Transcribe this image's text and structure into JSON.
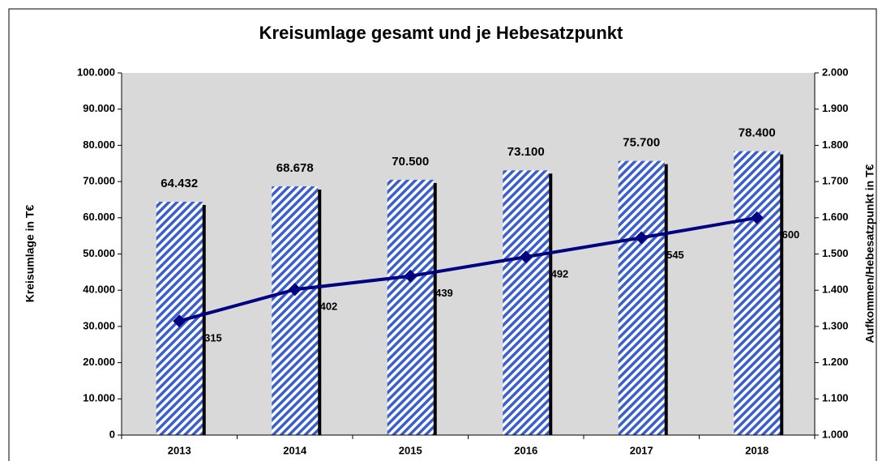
{
  "chart_data": {
    "type": "bar_line",
    "title": "Kreisumlage gesamt und je Hebesatzpunkt",
    "ylabel": "Kreisumlage in T€",
    "y2label": "Aufkommen/Hebesatzpunkt in T€",
    "categories": [
      "2013",
      "2014",
      "2015",
      "2016",
      "2017",
      "2018"
    ],
    "series": [
      {
        "type": "bar",
        "color": "#3a5fcd",
        "values": [
          64432,
          68678,
          70500,
          73100,
          75700,
          78400
        ],
        "value_labels": [
          "64.432",
          "68.678",
          "70.500",
          "73.100",
          "75.700",
          "78.400"
        ]
      },
      {
        "type": "line",
        "axis": "y2",
        "color": "#000080",
        "values": [
          1315,
          1402,
          1439,
          1492,
          1545,
          1600
        ],
        "value_labels": [
          "1.315",
          "1.402",
          "1.439",
          "1.492",
          "1.545",
          "1.600"
        ]
      }
    ],
    "ylim": [
      0,
      100000
    ],
    "yticks": [
      0,
      {
        "value": 10000,
        "label": "10.000"
      },
      {
        "value": 20000,
        "label": "20.000"
      },
      {
        "value": 30000,
        "label": "30.000"
      },
      {
        "value": 40000,
        "label": "40.000"
      },
      {
        "value": 50000,
        "label": "50.000"
      },
      {
        "value": 60000,
        "label": "60.000"
      },
      {
        "value": 70000,
        "label": "70.000"
      },
      {
        "value": 80000,
        "label": "80.000"
      },
      {
        "value": 90000,
        "label": "90.000"
      },
      {
        "value": 100000,
        "label": "100.000"
      }
    ],
    "y2lim": [
      1000,
      2000
    ],
    "y2ticks": [
      {
        "value": 1000,
        "label": "1.000"
      },
      {
        "value": 1100,
        "label": "1.100"
      },
      {
        "value": 1200,
        "label": "1.200"
      },
      {
        "value": 1300,
        "label": "1.300"
      },
      {
        "value": 1400,
        "label": "1.400"
      },
      {
        "value": 1500,
        "label": "1.500"
      },
      {
        "value": 1600,
        "label": "1.600"
      },
      {
        "value": 1700,
        "label": "1.700"
      },
      {
        "value": 1800,
        "label": "1.800"
      },
      {
        "value": 1900,
        "label": "1.900"
      },
      {
        "value": 2000,
        "label": "2.000"
      }
    ]
  }
}
